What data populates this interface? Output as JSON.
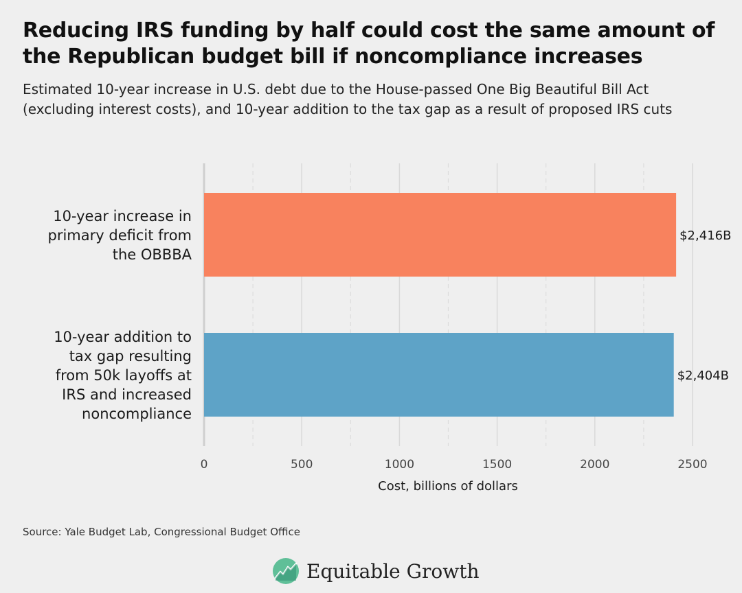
{
  "chart_data": {
    "type": "bar",
    "orientation": "horizontal",
    "title": "Reducing IRS funding by half could cost the same amount of the Republican budget bill if noncompliance increases",
    "subtitle": "Estimated 10-year increase in U.S. debt due to the House-passed One Big Beautiful Bill Act (excluding interest costs), and 10-year addition to the tax gap as a result of proposed IRS cuts",
    "xlabel": "Cost, billions of dollars",
    "ylabel": "",
    "xlim": [
      0,
      2500
    ],
    "ticks": [
      0,
      500,
      1000,
      1500,
      2000,
      2500
    ],
    "tick_labels": [
      "0",
      "500",
      "1000",
      "1500",
      "2000",
      "2500"
    ],
    "grid": true,
    "categories": [
      "10-year increase in primary deficit from the OBBBA",
      "10-year addition to tax gap resulting from 50k layoffs at IRS and increased noncompliance"
    ],
    "category_lines": [
      [
        "10-year increase in",
        "primary deficit from",
        "the OBBBA"
      ],
      [
        "10-year addition to",
        "tax gap resulting",
        "from 50k layoffs at",
        "IRS and increased",
        "noncompliance"
      ]
    ],
    "values": [
      2416,
      2404
    ],
    "data_labels": [
      "$2,416B",
      "$2,404B"
    ],
    "colors": [
      "#f8825e",
      "#5ea3c7"
    ]
  },
  "source": "Source: Yale Budget Lab, Congressional Budget Office",
  "brand": {
    "name": "Equitable Growth",
    "logo": "equitable-growth-logo"
  }
}
